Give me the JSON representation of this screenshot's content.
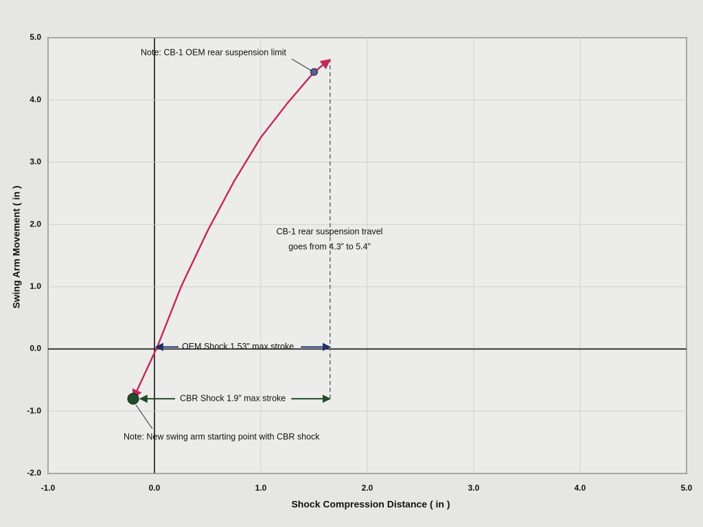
{
  "chart_data": {
    "type": "line",
    "x_label": "Shock Compression Distance  ( in )",
    "y_label": "Swing Arm Movement  ( in )",
    "xlim": [
      -1,
      5
    ],
    "ylim": [
      -2,
      5
    ],
    "xticks": [
      {
        "value": -1,
        "label": "-1.0"
      },
      {
        "value": 0,
        "label": "0.0"
      },
      {
        "value": 1,
        "label": "1.0"
      },
      {
        "value": 2,
        "label": "2.0"
      },
      {
        "value": 3,
        "label": "3.0"
      },
      {
        "value": 4,
        "label": "4.0"
      },
      {
        "value": 5,
        "label": "5.0"
      }
    ],
    "yticks": [
      {
        "value": -2,
        "label": "-2.0"
      },
      {
        "value": -1,
        "label": "-1.0"
      },
      {
        "value": 0,
        "label": "0.0"
      },
      {
        "value": 1,
        "label": "1.0"
      },
      {
        "value": 2,
        "label": "2.0"
      },
      {
        "value": 3,
        "label": "3.0"
      },
      {
        "value": 4,
        "label": "4.0"
      },
      {
        "value": 5,
        "label": "5.0"
      }
    ],
    "grid": true,
    "series": [
      {
        "color": "#c42a5e",
        "x": [
          -0.2,
          0.03,
          0.25,
          0.5,
          0.75,
          1.0,
          1.25,
          1.5,
          1.65
        ],
        "values": [
          -0.8,
          0.05,
          1.0,
          1.9,
          2.7,
          3.4,
          3.95,
          4.45,
          4.65
        ]
      }
    ],
    "markers": [
      {
        "x": -0.2,
        "y": -0.8,
        "color": "#1f4d2b"
      },
      {
        "x": 1.5,
        "y": 4.45,
        "color": "#5a5f9e"
      }
    ],
    "travel_line": {
      "x": 1.65,
      "y_start": -0.8,
      "y_end": 4.65
    },
    "annotations": {
      "oem_limit": "Note:  CB-1 OEM rear suspension limit",
      "travel_1": "CB-1 rear suspension travel",
      "travel_2": "goes from 4.3” to 5.4”",
      "oem_shock": "OEM Shock 1.53” max stroke",
      "cbr_shock": "CBR Shock 1.9” max stroke",
      "start_note": "Note:  New swing arm starting point with CBR shock"
    }
  }
}
